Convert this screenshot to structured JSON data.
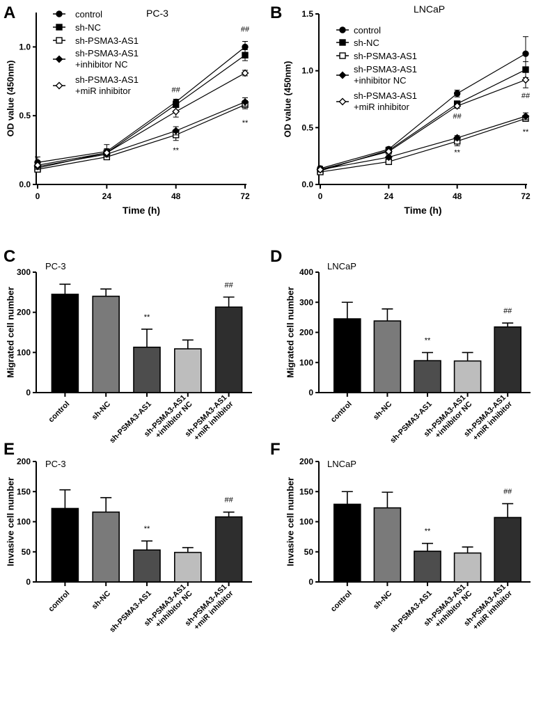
{
  "chart_data": [
    {
      "panel": "A",
      "type": "line",
      "title": "PC-3",
      "xlabel": "Time (h)",
      "ylabel": "OD value (450nm)",
      "x": [
        0,
        24,
        48,
        72
      ],
      "xticks": [
        "0",
        "24",
        "48",
        "72"
      ],
      "ylim": [
        0,
        1.25
      ],
      "yticks": [
        0.0,
        0.5,
        1.0
      ],
      "ytick_labels": [
        "0.0",
        "0.5",
        "1.0"
      ],
      "legend": "top-left",
      "series": [
        {
          "name": "control",
          "marker": "circle-filled",
          "values": [
            0.16,
            0.24,
            0.6,
            1.0
          ],
          "errors": [
            0.04,
            0.05,
            0.02,
            0.04
          ]
        },
        {
          "name": "sh-NC",
          "marker": "square-filled",
          "values": [
            0.12,
            0.23,
            0.58,
            0.94
          ],
          "errors": [
            0.02,
            0.03,
            0.02,
            0.04
          ]
        },
        {
          "name": "sh-PSMA3-AS1",
          "marker": "square-open",
          "values": [
            0.11,
            0.2,
            0.36,
            0.58
          ],
          "errors": [
            0.02,
            0.02,
            0.04,
            0.03
          ]
        },
        {
          "name": "sh-PSMA3-AS1 +inhibitor NC",
          "lines": [
            "sh-PSMA3-AS1",
            "+inhibitor NC"
          ],
          "marker": "diamond-filled",
          "values": [
            0.13,
            0.22,
            0.39,
            0.6
          ],
          "errors": [
            0.02,
            0.02,
            0.03,
            0.03
          ]
        },
        {
          "name": "sh-PSMA3-AS1 +miR inhibitor",
          "lines": [
            "sh-PSMA3-AS1",
            "+miR inhibitor"
          ],
          "marker": "diamond-open",
          "values": [
            0.14,
            0.23,
            0.53,
            0.81
          ],
          "errors": [
            0.02,
            0.02,
            0.04,
            0.02
          ]
        }
      ],
      "annotations": [
        {
          "text": "##",
          "x": 48,
          "y": 0.67
        },
        {
          "text": "##",
          "x": 72,
          "y": 1.11
        },
        {
          "text": "**",
          "x": 48,
          "y": 0.23
        },
        {
          "text": "**",
          "x": 72,
          "y": 0.43
        }
      ]
    },
    {
      "panel": "B",
      "type": "line",
      "title": "LNCaP",
      "xlabel": "Time (h)",
      "ylabel": "OD value (450nm)",
      "x": [
        0,
        24,
        48,
        72
      ],
      "xticks": [
        "0",
        "24",
        "48",
        "72"
      ],
      "ylim": [
        0,
        1.5
      ],
      "yticks": [
        0.0,
        0.5,
        1.0,
        1.5
      ],
      "ytick_labels": [
        "0.0",
        "0.5",
        "1.0",
        "1.5"
      ],
      "legend": "top-left",
      "series": [
        {
          "name": "control",
          "marker": "circle-filled",
          "values": [
            0.14,
            0.31,
            0.8,
            1.15
          ],
          "errors": [
            0.02,
            0.02,
            0.03,
            0.15
          ]
        },
        {
          "name": "sh-NC",
          "marker": "square-filled",
          "values": [
            0.12,
            0.3,
            0.71,
            1.01
          ],
          "errors": [
            0.02,
            0.02,
            0.02,
            0.07
          ]
        },
        {
          "name": "sh-PSMA3-AS1",
          "marker": "square-open",
          "values": [
            0.11,
            0.2,
            0.38,
            0.58
          ],
          "errors": [
            0.02,
            0.02,
            0.04,
            0.02
          ]
        },
        {
          "name": "sh-PSMA3-AS1 +inhibitor NC",
          "lines": [
            "sh-PSMA3-AS1",
            "+inhibitor NC"
          ],
          "marker": "diamond-filled",
          "values": [
            0.13,
            0.24,
            0.41,
            0.6
          ],
          "errors": [
            0.02,
            0.02,
            0.02,
            0.03
          ]
        },
        {
          "name": "sh-PSMA3-AS1 +miR inhibitor",
          "lines": [
            "sh-PSMA3-AS1",
            "+miR inhibitor"
          ],
          "marker": "diamond-open",
          "values": [
            0.13,
            0.29,
            0.69,
            0.92
          ],
          "errors": [
            0.02,
            0.02,
            0.02,
            0.07
          ]
        }
      ],
      "annotations": [
        {
          "text": "##",
          "x": 48,
          "y": 0.58
        },
        {
          "text": "##",
          "x": 72,
          "y": 0.76
        },
        {
          "text": "**",
          "x": 48,
          "y": 0.26
        },
        {
          "text": "**",
          "x": 72,
          "y": 0.44
        }
      ]
    },
    {
      "panel": "C",
      "type": "bar",
      "title": "PC-3",
      "ylabel": "Migrated cell number",
      "xlabel": "",
      "categories": [
        [
          "control"
        ],
        [
          "sh-NC"
        ],
        [
          "sh-PSMA3-AS1"
        ],
        [
          "sh-PSMA3-AS1",
          "+inhibitor NC"
        ],
        [
          "sh-PSMA3-AS1",
          "+miR inhibitor"
        ]
      ],
      "values": [
        245,
        240,
        113,
        109,
        213
      ],
      "errors": [
        25,
        18,
        45,
        22,
        25
      ],
      "colors": [
        "#000000",
        "#7a7a7a",
        "#4d4d4d",
        "#bdbdbd",
        "#2e2e2e"
      ],
      "ylim": [
        0,
        300
      ],
      "yticks": [
        0,
        100,
        200,
        300
      ],
      "ytick_labels": [
        "0",
        "100",
        "200",
        "300"
      ],
      "annotations": [
        {
          "text": "**",
          "index": 2
        },
        {
          "text": "##",
          "index": 4
        }
      ]
    },
    {
      "panel": "D",
      "type": "bar",
      "title": "LNCaP",
      "ylabel": "Migrated cell number",
      "xlabel": "",
      "categories": [
        [
          "control"
        ],
        [
          "sh-NC"
        ],
        [
          "sh-PSMA3-AS1"
        ],
        [
          "sh-PSMA3-AS1",
          "+inhibitor NC"
        ],
        [
          "sh-PSMA3-AS1",
          "+miR inhibitor"
        ]
      ],
      "values": [
        245,
        238,
        106,
        105,
        218
      ],
      "errors": [
        55,
        40,
        27,
        28,
        13
      ],
      "colors": [
        "#000000",
        "#7a7a7a",
        "#4d4d4d",
        "#bdbdbd",
        "#2e2e2e"
      ],
      "ylim": [
        0,
        400
      ],
      "yticks": [
        0,
        100,
        200,
        300,
        400
      ],
      "ytick_labels": [
        "0",
        "100",
        "200",
        "300",
        "400"
      ],
      "annotations": [
        {
          "text": "**",
          "index": 2
        },
        {
          "text": "##",
          "index": 4
        }
      ]
    },
    {
      "panel": "E",
      "type": "bar",
      "title": "PC-3",
      "ylabel": "Invasive cell number",
      "xlabel": "",
      "categories": [
        [
          "control"
        ],
        [
          "sh-NC"
        ],
        [
          "sh-PSMA3-AS1"
        ],
        [
          "sh-PSMA3-AS1",
          "+inhibitor NC"
        ],
        [
          "sh-PSMA3-AS1",
          "+miR inhibitor"
        ]
      ],
      "values": [
        122,
        116,
        53,
        49,
        108
      ],
      "errors": [
        31,
        24,
        15,
        8,
        8
      ],
      "colors": [
        "#000000",
        "#7a7a7a",
        "#4d4d4d",
        "#bdbdbd",
        "#2e2e2e"
      ],
      "ylim": [
        0,
        200
      ],
      "yticks": [
        0,
        50,
        100,
        150,
        200
      ],
      "ytick_labels": [
        "0",
        "50",
        "100",
        "150",
        "200"
      ],
      "annotations": [
        {
          "text": "**",
          "index": 2
        },
        {
          "text": "##",
          "index": 4
        }
      ]
    },
    {
      "panel": "F",
      "type": "bar",
      "title": "LNCaP",
      "ylabel": "Invasive cell number",
      "xlabel": "",
      "categories": [
        [
          "control"
        ],
        [
          "sh-NC"
        ],
        [
          "sh-PSMA3-AS1"
        ],
        [
          "sh-PSMA3-AS1",
          "+inhibitor NC"
        ],
        [
          "sh-PSMA3-AS1",
          "+miR inhibitor"
        ]
      ],
      "values": [
        129,
        123,
        51,
        48,
        107
      ],
      "errors": [
        21,
        26,
        13,
        10,
        23
      ],
      "colors": [
        "#000000",
        "#7a7a7a",
        "#4d4d4d",
        "#bdbdbd",
        "#2e2e2e"
      ],
      "ylim": [
        0,
        200
      ],
      "yticks": [
        0,
        50,
        100,
        150,
        200
      ],
      "ytick_labels": [
        "0",
        "50",
        "100",
        "150",
        "200"
      ],
      "annotations": [
        {
          "text": "**",
          "index": 2
        },
        {
          "text": "##",
          "index": 4
        }
      ]
    }
  ]
}
